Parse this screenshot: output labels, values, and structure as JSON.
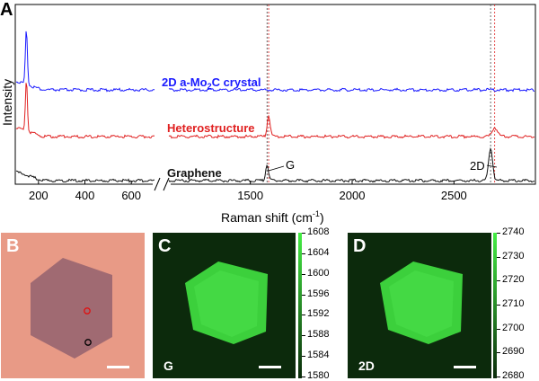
{
  "panel_labels": {
    "a": "A",
    "b": "B",
    "c": "C",
    "d": "D"
  },
  "chart_data": {
    "type": "line",
    "ylabel": "Intensity",
    "xlabel": "Raman shift (cm",
    "xlabel_sup": "-1",
    "xlabel_close": ")",
    "x_ticks_left": [
      "200",
      "400",
      "600"
    ],
    "x_ticks_right": [
      "1500",
      "2000",
      "2500"
    ],
    "xlim_left": [
      100,
      700
    ],
    "xlim_right": [
      1100,
      2900
    ],
    "series": [
      {
        "name": "2D a-Mo2C crystal",
        "label_main": "2D a-Mo",
        "label_sub": "2",
        "label_rest": "C crystal",
        "color": "#1a1aff",
        "peaks": [
          {
            "x": 148,
            "height": "strong"
          }
        ]
      },
      {
        "name": "Heterostructure",
        "label": "Heterostructure",
        "color": "#e02020",
        "peaks": [
          {
            "x": 148,
            "height": "strong"
          },
          {
            "x": 1590,
            "height": "medium"
          },
          {
            "x": 2700,
            "height": "weak"
          }
        ]
      },
      {
        "name": "Graphene",
        "label": "Graphene",
        "color": "#111111",
        "peaks": [
          {
            "x": 1582,
            "height": "medium"
          },
          {
            "x": 2680,
            "height": "strong"
          }
        ]
      }
    ],
    "annotations": {
      "g_peak": "G",
      "twod_peak": "2D"
    },
    "reference_lines": [
      1582,
      1590,
      2680,
      2700
    ]
  },
  "panel_c": {
    "map_label": "G",
    "colorbar_ticks": [
      "1608",
      "1604",
      "1600",
      "1596",
      "1592",
      "1588",
      "1584",
      "1580"
    ]
  },
  "panel_d": {
    "map_label": "2D",
    "colorbar_ticks": [
      "2740",
      "2730",
      "2720",
      "2710",
      "2700",
      "2690",
      "2680"
    ]
  },
  "colors": {
    "background_b": "#e89a86",
    "flake_b": "#a06a72",
    "map_bg": "#0c2a0c",
    "map_flake": "#3cd03c"
  }
}
